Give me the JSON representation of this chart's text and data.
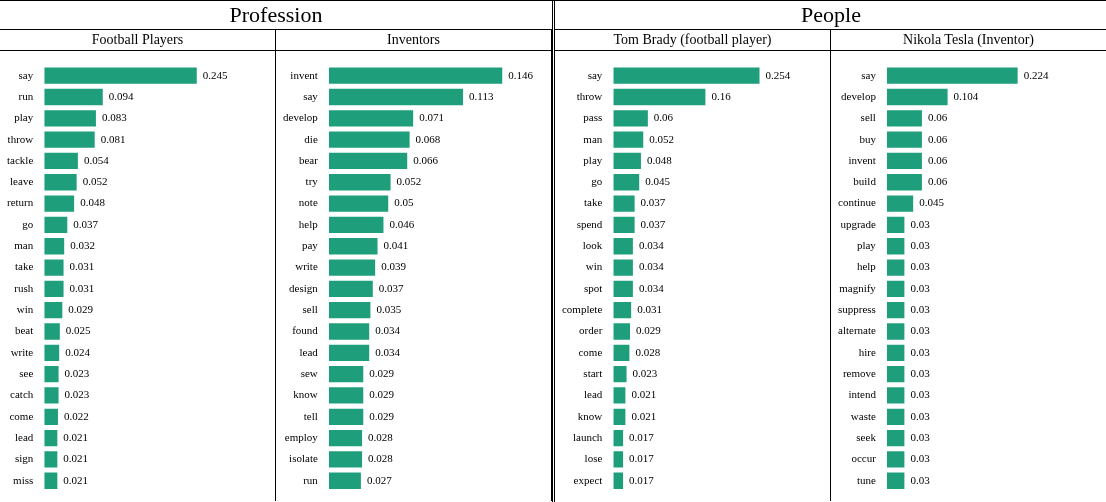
{
  "chart_data": [
    {
      "type": "bar",
      "annotations": [
        "Profession"
      ],
      "subtitle": "Football Players",
      "orientation": "horizontal",
      "data_labels": true,
      "color": "#1e9e7b",
      "categories": [
        "say",
        "run",
        "play",
        "throw",
        "tackle",
        "leave",
        "return",
        "go",
        "man",
        "take",
        "rush",
        "win",
        "beat",
        "write",
        "see",
        "catch",
        "come",
        "lead",
        "sign",
        "miss"
      ],
      "values": [
        0.245,
        0.094,
        0.083,
        0.081,
        0.054,
        0.052,
        0.048,
        0.037,
        0.032,
        0.031,
        0.031,
        0.029,
        0.025,
        0.024,
        0.023,
        0.023,
        0.022,
        0.021,
        0.021,
        0.021
      ]
    },
    {
      "type": "bar",
      "subtitle": "Inventors",
      "orientation": "horizontal",
      "data_labels": true,
      "color": "#1e9e7b",
      "categories": [
        "invent",
        "say",
        "develop",
        "die",
        "bear",
        "try",
        "note",
        "help",
        "pay",
        "write",
        "design",
        "sell",
        "found",
        "lead",
        "sew",
        "know",
        "tell",
        "employ",
        "isolate",
        "run"
      ],
      "values": [
        0.146,
        0.113,
        0.071,
        0.068,
        0.066,
        0.052,
        0.05,
        0.046,
        0.041,
        0.039,
        0.037,
        0.035,
        0.034,
        0.034,
        0.029,
        0.029,
        0.029,
        0.028,
        0.028,
        0.027
      ]
    },
    {
      "type": "bar",
      "annotations": [
        "People"
      ],
      "subtitle": "Tom Brady (football player)",
      "orientation": "horizontal",
      "data_labels": true,
      "color": "#1e9e7b",
      "categories": [
        "say",
        "throw",
        "pass",
        "man",
        "play",
        "go",
        "take",
        "spend",
        "look",
        "win",
        "spot",
        "complete",
        "order",
        "come",
        "start",
        "lead",
        "know",
        "launch",
        "lose",
        "expect"
      ],
      "values": [
        0.254,
        0.16,
        0.06,
        0.052,
        0.048,
        0.045,
        0.037,
        0.037,
        0.034,
        0.034,
        0.034,
        0.031,
        0.029,
        0.028,
        0.023,
        0.021,
        0.021,
        0.017,
        0.017,
        0.017
      ]
    },
    {
      "type": "bar",
      "subtitle": "Nikola Tesla (Inventor)",
      "orientation": "horizontal",
      "data_labels": true,
      "color": "#1e9e7b",
      "categories": [
        "say",
        "develop",
        "sell",
        "buy",
        "invent",
        "build",
        "continue",
        "upgrade",
        "play",
        "help",
        "magnify",
        "suppress",
        "alternate",
        "hire",
        "remove",
        "intend",
        "waste",
        "seek",
        "occur",
        "tune"
      ],
      "values": [
        0.224,
        0.104,
        0.06,
        0.06,
        0.06,
        0.06,
        0.045,
        0.03,
        0.03,
        0.03,
        0.03,
        0.03,
        0.03,
        0.03,
        0.03,
        0.03,
        0.03,
        0.03,
        0.03,
        0.03
      ]
    }
  ]
}
